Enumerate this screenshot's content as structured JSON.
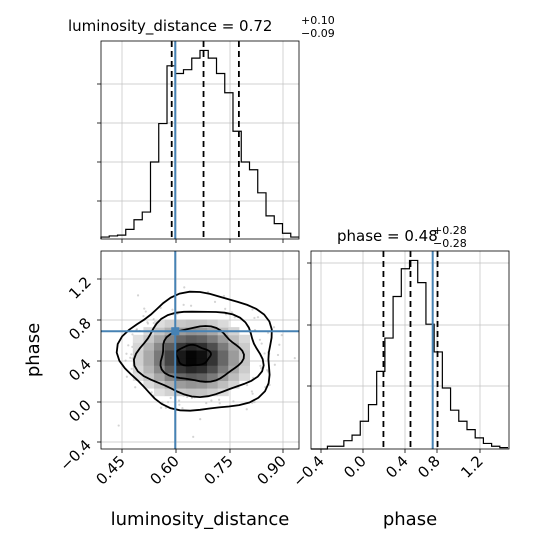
{
  "chart_data": [
    {
      "panel": "luminosity_distance-marginal",
      "type": "histogram",
      "title": {
        "prefix": "luminosity_distance = 0.72",
        "upper": "+0.10",
        "lower": "−0.09"
      },
      "xlim": [
        0.43,
        0.99
      ],
      "bin_edges": [
        0.43,
        0.4533,
        0.4767,
        0.5,
        0.5233,
        0.5467,
        0.57,
        0.5933,
        0.6167,
        0.64,
        0.6633,
        0.6867,
        0.71,
        0.7333,
        0.7567,
        0.78,
        0.8033,
        0.8267,
        0.85,
        0.8733,
        0.8967,
        0.92,
        0.9433,
        0.9667,
        0.99
      ],
      "counts": [
        0.5,
        0.8,
        1,
        2.5,
        5,
        7,
        20,
        30,
        45,
        43,
        44,
        47,
        49,
        47,
        43,
        38,
        28,
        20,
        18,
        12,
        6,
        4,
        1.5,
        0.5
      ],
      "quantiles": [
        0.63,
        0.72,
        0.82
      ],
      "truth": 0.64,
      "grid": true,
      "x_tick_labels_shown": false
    },
    {
      "panel": "phase-vs-luminosity_distance",
      "type": "heatmap",
      "style": "2d-histogram-with-contours-and-scatter",
      "xlim": [
        0.43,
        0.99
      ],
      "ylim": [
        -0.45,
        1.5
      ],
      "x_ticks": [
        "0.45",
        "0.60",
        "0.75",
        "0.90"
      ],
      "y_ticks": [
        "−0.4",
        "0.0",
        "0.4",
        "0.8",
        "1.2"
      ],
      "xlabel": "luminosity_distance",
      "ylabel": "phase",
      "density_peak": {
        "x": 0.69,
        "y": 0.45
      },
      "contour_levels": [
        {
          "center": [
            0.69,
            0.47
          ],
          "half_widths": [
            0.048,
            0.1
          ]
        },
        {
          "center": [
            0.71,
            0.48
          ],
          "half_widths": [
            0.115,
            0.27
          ]
        },
        {
          "center": [
            0.71,
            0.49
          ],
          "half_widths": [
            0.175,
            0.42
          ]
        },
        {
          "center": [
            0.71,
            0.5
          ],
          "half_widths": [
            0.215,
            0.58
          ]
        }
      ],
      "truth": {
        "x": 0.64,
        "y": 0.71
      },
      "grid": true
    },
    {
      "panel": "phase-marginal",
      "type": "histogram",
      "title": {
        "prefix": "phase = 0.48",
        "upper": "+0.28",
        "lower": "−0.28"
      },
      "xlim": [
        -0.55,
        1.5
      ],
      "bin_edges": [
        -0.55,
        -0.465,
        -0.38,
        -0.295,
        -0.21,
        -0.125,
        -0.04,
        0.045,
        0.13,
        0.215,
        0.3,
        0.385,
        0.47,
        0.555,
        0.64,
        0.725,
        0.81,
        0.895,
        0.98,
        1.065,
        1.15,
        1.235,
        1.32,
        1.405,
        1.49
      ],
      "counts": [
        0,
        0,
        1,
        1,
        3,
        5,
        10,
        16,
        28,
        40,
        55,
        65,
        68,
        60,
        45,
        35,
        22,
        14,
        10,
        7,
        4,
        2,
        1,
        0.5
      ],
      "quantiles": [
        0.2,
        0.48,
        0.76
      ],
      "truth": 0.71,
      "x_ticks": [
        "−0.4",
        "0.0",
        "0.4",
        "0.8",
        "1.2"
      ],
      "xlabel": "phase",
      "grid": true
    }
  ],
  "colors": {
    "truth": "#4682b4",
    "line": "#000000",
    "grid": "#c0c0c0",
    "scatter": "#a9a9a9"
  }
}
